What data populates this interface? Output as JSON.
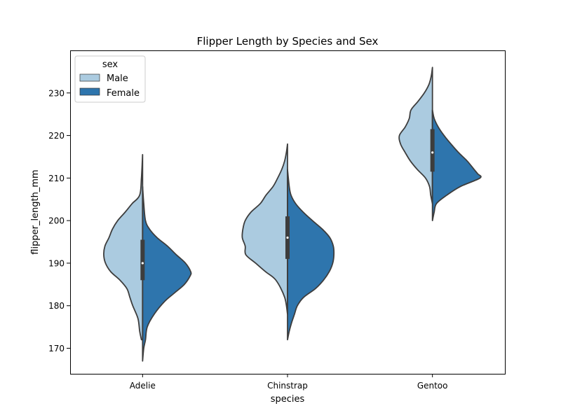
{
  "chart_data": {
    "type": "violin",
    "title": "Flipper Length by Species and Sex",
    "xlabel": "species",
    "ylabel": "flipper_length_mm",
    "categories": [
      "Adelie",
      "Chinstrap",
      "Gentoo"
    ],
    "ylim": [
      164,
      240
    ],
    "yticks": [
      170,
      180,
      190,
      200,
      210,
      220,
      230
    ],
    "split": true,
    "legend": {
      "title": "sex",
      "position": "upper left"
    },
    "series": [
      {
        "name": "Male",
        "color": "#abcbe0",
        "side": "left",
        "violins": [
          {
            "category": "Adelie",
            "range": [
              172,
              215.5
            ],
            "profile": [
              [
                172,
                0.02
              ],
              [
                174,
                0.05
              ],
              [
                177,
                0.08
              ],
              [
                180,
                0.17
              ],
              [
                182,
                0.22
              ],
              [
                184,
                0.27
              ],
              [
                186,
                0.39
              ],
              [
                188,
                0.55
              ],
              [
                190,
                0.64
              ],
              [
                192,
                0.67
              ],
              [
                194,
                0.65
              ],
              [
                196,
                0.58
              ],
              [
                198,
                0.52
              ],
              [
                200,
                0.43
              ],
              [
                202,
                0.3
              ],
              [
                204,
                0.18
              ],
              [
                206,
                0.05
              ],
              [
                210,
                0.02
              ],
              [
                215.5,
                0
              ]
            ]
          },
          {
            "category": "Chinstrap",
            "range": [
              178,
              218
            ],
            "profile": [
              [
                178,
                0
              ],
              [
                182,
                0.05
              ],
              [
                186,
                0.2
              ],
              [
                188,
                0.38
              ],
              [
                190,
                0.55
              ],
              [
                192,
                0.72
              ],
              [
                194,
                0.73
              ],
              [
                196,
                0.78
              ],
              [
                198,
                0.77
              ],
              [
                200,
                0.73
              ],
              [
                202,
                0.63
              ],
              [
                204,
                0.47
              ],
              [
                206,
                0.37
              ],
              [
                208,
                0.25
              ],
              [
                210,
                0.17
              ],
              [
                212,
                0.1
              ],
              [
                214,
                0.05
              ],
              [
                216,
                0.02
              ],
              [
                218,
                0
              ]
            ]
          },
          {
            "category": "Gentoo",
            "range": [
              204,
              236
            ],
            "profile": [
              [
                204,
                0
              ],
              [
                206,
                0.03
              ],
              [
                208,
                0.05
              ],
              [
                210,
                0.12
              ],
              [
                212,
                0.26
              ],
              [
                214,
                0.38
              ],
              [
                216,
                0.47
              ],
              [
                218,
                0.55
              ],
              [
                220,
                0.57
              ],
              [
                222,
                0.47
              ],
              [
                224,
                0.4
              ],
              [
                226,
                0.37
              ],
              [
                228,
                0.25
              ],
              [
                230,
                0.14
              ],
              [
                232,
                0.06
              ],
              [
                234,
                0.02
              ],
              [
                236,
                0
              ]
            ]
          }
        ]
      },
      {
        "name": "Female",
        "color": "#2e75ad",
        "side": "right",
        "violins": [
          {
            "category": "Adelie",
            "range": [
              167,
              208
            ],
            "profile": [
              [
                167,
                0
              ],
              [
                170,
                0.02
              ],
              [
                172,
                0.05
              ],
              [
                175,
                0.08
              ],
              [
                178,
                0.2
              ],
              [
                181,
                0.38
              ],
              [
                183,
                0.55
              ],
              [
                185,
                0.72
              ],
              [
                187,
                0.82
              ],
              [
                188,
                0.83
              ],
              [
                190,
                0.74
              ],
              [
                192,
                0.58
              ],
              [
                194,
                0.43
              ],
              [
                196,
                0.25
              ],
              [
                198,
                0.12
              ],
              [
                200,
                0.05
              ],
              [
                204,
                0.02
              ],
              [
                208,
                0
              ]
            ]
          },
          {
            "category": "Chinstrap",
            "range": [
              172,
              212
            ],
            "profile": [
              [
                172,
                0
              ],
              [
                174,
                0.03
              ],
              [
                176,
                0.07
              ],
              [
                178,
                0.12
              ],
              [
                180,
                0.17
              ],
              [
                182,
                0.28
              ],
              [
                184,
                0.48
              ],
              [
                186,
                0.62
              ],
              [
                188,
                0.72
              ],
              [
                190,
                0.78
              ],
              [
                192,
                0.8
              ],
              [
                194,
                0.79
              ],
              [
                196,
                0.73
              ],
              [
                198,
                0.6
              ],
              [
                200,
                0.43
              ],
              [
                202,
                0.27
              ],
              [
                204,
                0.14
              ],
              [
                206,
                0.06
              ],
              [
                208,
                0.03
              ],
              [
                212,
                0
              ]
            ]
          },
          {
            "category": "Gentoo",
            "range": [
              200,
              226
            ],
            "profile": [
              [
                200,
                0
              ],
              [
                202,
                0.03
              ],
              [
                204,
                0.07
              ],
              [
                206,
                0.25
              ],
              [
                208,
                0.48
              ],
              [
                210,
                0.82
              ],
              [
                211,
                0.78
              ],
              [
                212,
                0.72
              ],
              [
                214,
                0.6
              ],
              [
                216,
                0.45
              ],
              [
                218,
                0.32
              ],
              [
                220,
                0.2
              ],
              [
                222,
                0.1
              ],
              [
                224,
                0.03
              ],
              [
                226,
                0
              ]
            ]
          }
        ]
      }
    ],
    "boxes": [
      {
        "category": "Adelie",
        "median": 190,
        "q1": 186,
        "q3": 195.5,
        "whisker": [
          172,
          208
        ]
      },
      {
        "category": "Chinstrap",
        "median": 196,
        "q1": 191,
        "q3": 201,
        "whisker": [
          178,
          212
        ]
      },
      {
        "category": "Gentoo",
        "median": 216,
        "q1": 211.5,
        "q3": 221.5,
        "whisker": [
          204,
          226
        ]
      }
    ],
    "grid": false
  }
}
